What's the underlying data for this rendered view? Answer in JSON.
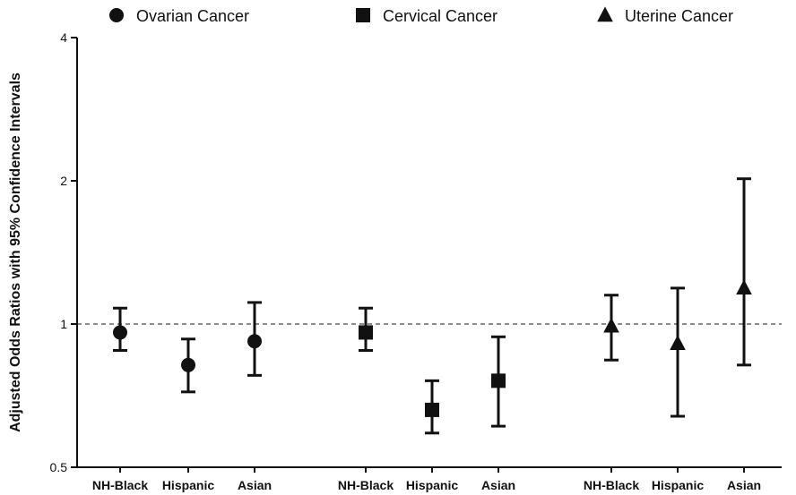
{
  "chart_data": {
    "type": "scatter",
    "ylabel": "Adjusted Odds Ratios with  95% Confidence Intervals",
    "y_scale": "log2",
    "ylim": [
      0.5,
      4
    ],
    "yticks": [
      {
        "value": 0.5,
        "label": "0.5"
      },
      {
        "value": 1,
        "label": "1"
      },
      {
        "value": 2,
        "label": "2"
      },
      {
        "value": 4,
        "label": "4"
      }
    ],
    "reference_line": 1,
    "legend_position": "top",
    "categories": [
      "NH-Black",
      "Hispanic",
      "Asian",
      "NH-Black",
      "Hispanic",
      "Asian",
      "NH-Black",
      "Hispanic",
      "Asian"
    ],
    "series": [
      {
        "name": "Ovarian Cancer",
        "marker": "circle",
        "points": [
          {
            "category": "NH-Black",
            "estimate": 0.96,
            "lower": 0.88,
            "upper": 1.08
          },
          {
            "category": "Hispanic",
            "estimate": 0.82,
            "lower": 0.72,
            "upper": 0.93
          },
          {
            "category": "Asian",
            "estimate": 0.92,
            "lower": 0.78,
            "upper": 1.11
          }
        ]
      },
      {
        "name": "Cervical Cancer",
        "marker": "square",
        "points": [
          {
            "category": "NH-Black",
            "estimate": 0.96,
            "lower": 0.88,
            "upper": 1.08
          },
          {
            "category": "Hispanic",
            "estimate": 0.66,
            "lower": 0.59,
            "upper": 0.76
          },
          {
            "category": "Asian",
            "estimate": 0.76,
            "lower": 0.61,
            "upper": 0.94
          }
        ]
      },
      {
        "name": "Uterine Cancer",
        "marker": "triangle",
        "points": [
          {
            "category": "NH-Black",
            "estimate": 0.99,
            "lower": 0.84,
            "upper": 1.15
          },
          {
            "category": "Hispanic",
            "estimate": 0.91,
            "lower": 0.64,
            "upper": 1.19
          },
          {
            "category": "Asian",
            "estimate": 1.19,
            "lower": 0.82,
            "upper": 2.02
          }
        ]
      }
    ],
    "colors": {
      "marks": "#111111",
      "reference": "#666666"
    }
  }
}
